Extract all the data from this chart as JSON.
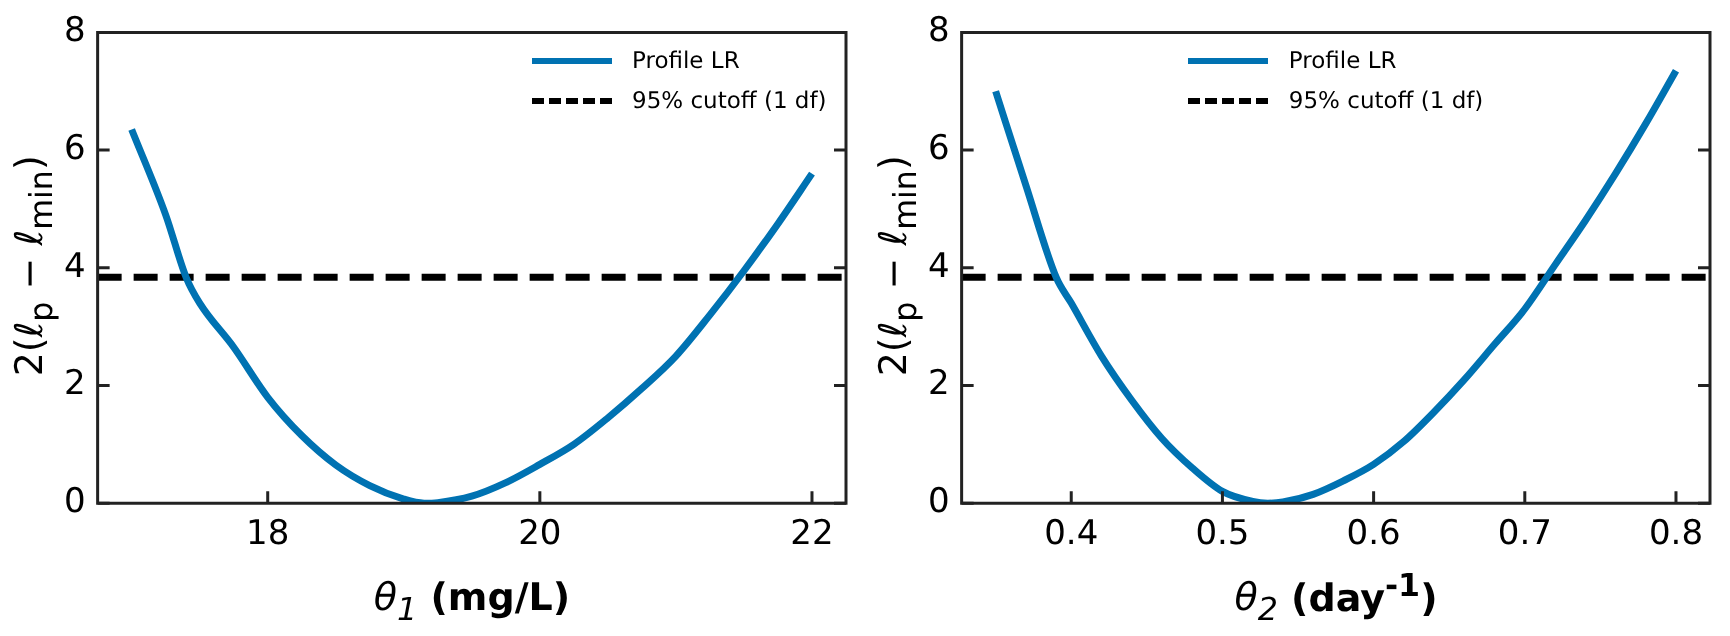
{
  "chart_data": [
    {
      "type": "line",
      "xlabel": "θ$_{1}$ (mg/L)",
      "ylabel": "2(ℓ$_{p}$ − ℓ$_{min}$)",
      "xlim": [
        16.75,
        22.25
      ],
      "xticks": [
        18,
        20,
        22
      ],
      "ylim": [
        0,
        8
      ],
      "yticks": [
        0,
        2,
        4,
        6,
        8
      ],
      "grid": false,
      "legend": "top right",
      "marker": "none",
      "series": [
        {
          "name": "Profile LR",
          "color": "#0072b2",
          "line_style": "solid",
          "x": [
            17,
            17.25,
            17.4,
            17.5,
            17.75,
            18,
            18.25,
            18.5,
            18.75,
            19,
            19.15,
            19.25,
            19.5,
            19.75,
            20,
            20.25,
            20.5,
            20.75,
            21,
            21.25,
            21.5,
            21.75,
            22
          ],
          "values": [
            6.35,
            4.9,
            3.84,
            3.4,
            2.65,
            1.8,
            1.15,
            0.65,
            0.3,
            0.07,
            0,
            0.01,
            0.12,
            0.35,
            0.66,
            1.0,
            1.45,
            1.95,
            2.5,
            3.2,
            3.95,
            4.75,
            5.6
          ]
        },
        {
          "name": "95% cutoff (1 df)",
          "color": "#000000",
          "line_style": "dashed",
          "x": [
            16.75,
            22.25
          ],
          "values": [
            3.84,
            3.84
          ]
        }
      ]
    },
    {
      "type": "line",
      "xlabel": "θ$_{2}$ (day$^{-1}$)",
      "ylabel": "2(ℓ$_{p}$ − ℓ$_{min}$)",
      "xlim": [
        0.3275,
        0.8225
      ],
      "xticks": [
        {
          "value": 0.4,
          "label": "0.4"
        },
        {
          "value": 0.5,
          "label": "0.5"
        },
        {
          "value": 0.6,
          "label": "0.6"
        },
        {
          "value": 0.7,
          "label": "0.7"
        },
        {
          "value": 0.8,
          "label": "0.8"
        }
      ],
      "ylim": [
        0,
        8
      ],
      "yticks": [
        0,
        2,
        4,
        6,
        8
      ],
      "grid": false,
      "legend": "top",
      "marker": "none",
      "series": [
        {
          "name": "Profile LR",
          "color": "#0072b2",
          "line_style": "solid",
          "x": [
            0.35,
            0.37,
            0.39,
            0.4,
            0.42,
            0.44,
            0.46,
            0.48,
            0.5,
            0.52,
            0.53,
            0.54,
            0.56,
            0.58,
            0.6,
            0.62,
            0.64,
            0.66,
            0.68,
            0.7,
            0.72,
            0.74,
            0.76,
            0.78,
            0.8
          ],
          "values": [
            7.0,
            5.4,
            3.84,
            3.4,
            2.5,
            1.75,
            1.1,
            0.6,
            0.2,
            0.03,
            0,
            0.02,
            0.15,
            0.38,
            0.66,
            1.05,
            1.55,
            2.1,
            2.7,
            3.3,
            4.05,
            4.8,
            5.6,
            6.45,
            7.35
          ]
        },
        {
          "name": "95% cutoff (1 df)",
          "color": "#000000",
          "line_style": "dashed",
          "x": [
            0.3275,
            0.8225
          ],
          "values": [
            3.84,
            3.84
          ]
        }
      ]
    }
  ]
}
